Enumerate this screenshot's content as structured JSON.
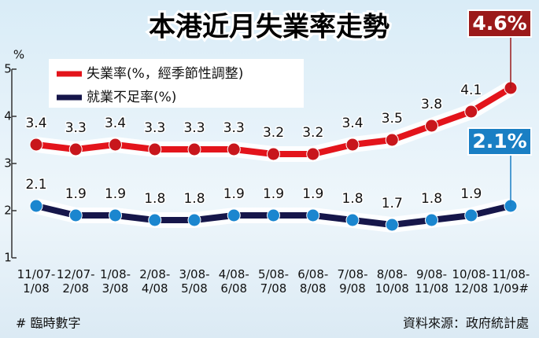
{
  "chart_data": {
    "type": "line",
    "title": "本港近月失業率走勢",
    "y_label": "%",
    "categories": [
      "11/07-\n1/08",
      "12/07-\n2/08",
      "1/08-\n3/08",
      "2/08-\n4/08",
      "3/08-\n5/08",
      "4/08-\n6/08",
      "5/08-\n7/08",
      "6/08-\n8/08",
      "7/08-\n9/08",
      "8/08-\n10/08",
      "9/08-\n11/08",
      "10/08-\n12/08",
      "11/08-\n1/09#"
    ],
    "series": [
      {
        "name": "失業率(%，經季節性調整)",
        "color": "#e3141b",
        "marker_color": "#c8161c",
        "callout_color": "#9b1a1a",
        "values": [
          3.4,
          3.3,
          3.4,
          3.3,
          3.3,
          3.3,
          3.2,
          3.2,
          3.4,
          3.5,
          3.8,
          4.1,
          4.6
        ],
        "value_labels": [
          "3.4",
          "3.3",
          "3.4",
          "3.3",
          "3.3",
          "3.3",
          "3.2",
          "3.2",
          "3.4",
          "3.5",
          "3.8",
          "4.1",
          "4.6%"
        ]
      },
      {
        "name": "就業不足率(%)",
        "color": "#16164a",
        "marker_color": "#1b86cf",
        "callout_color": "#1a7fc4",
        "values": [
          2.1,
          1.9,
          1.9,
          1.8,
          1.8,
          1.9,
          1.9,
          1.9,
          1.8,
          1.7,
          1.8,
          1.9,
          2.1
        ],
        "value_labels": [
          "2.1",
          "1.9",
          "1.9",
          "1.8",
          "1.8",
          "1.9",
          "1.9",
          "1.9",
          "1.8",
          "1.7",
          "1.8",
          "1.9",
          "2.1%"
        ]
      }
    ],
    "ylim": [
      1,
      5
    ],
    "yticks": [
      1,
      2,
      3,
      4,
      5
    ],
    "notes": [
      "# 臨時數字",
      "資料來源：政府統計處"
    ]
  }
}
